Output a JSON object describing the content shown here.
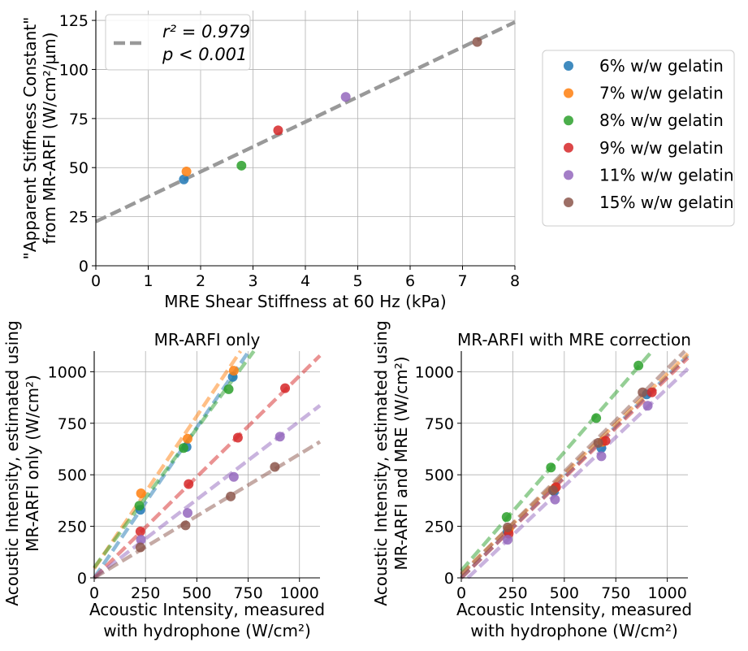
{
  "colors": {
    "6": "#1f77b4",
    "7": "#ff7f0e",
    "8": "#2ca02c",
    "9": "#d62728",
    "11": "#9467bd",
    "15": "#8c564b",
    "fit_gray": "#999999",
    "grid": "#b0b0b0"
  },
  "legend": {
    "items": [
      {
        "key": "6",
        "label": "6% w/w gelatin"
      },
      {
        "key": "7",
        "label": "7% w/w gelatin"
      },
      {
        "key": "8",
        "label": "8% w/w gelatin"
      },
      {
        "key": "9",
        "label": "9% w/w gelatin"
      },
      {
        "key": "11",
        "label": "11% w/w gelatin"
      },
      {
        "key": "15",
        "label": "15% w/w gelatin"
      }
    ]
  },
  "chart_data": [
    {
      "id": "top",
      "type": "scatter",
      "title": "",
      "xlabel": "MRE Shear Stiffness at 60 Hz (kPa)",
      "ylabel_lines": [
        "\"Apparent Stiffness Constant\"",
        "from MR-ARFI (W/cm²/µm)"
      ],
      "xlim": [
        0,
        8
      ],
      "ylim": [
        0,
        130
      ],
      "xticks": [
        0,
        1,
        2,
        3,
        4,
        5,
        6,
        7,
        8
      ],
      "yticks": [
        0,
        25,
        50,
        75,
        100,
        125
      ],
      "grid": true,
      "points": [
        {
          "key": "6",
          "x": 1.68,
          "y": 44
        },
        {
          "key": "7",
          "x": 1.73,
          "y": 48
        },
        {
          "key": "8",
          "x": 2.78,
          "y": 51
        },
        {
          "key": "9",
          "x": 3.48,
          "y": 69
        },
        {
          "key": "11",
          "x": 4.77,
          "y": 86
        },
        {
          "key": "15",
          "x": 7.28,
          "y": 114
        }
      ],
      "fit": {
        "intercept": 22.5,
        "slope": 12.7,
        "color_key": "fit_gray"
      },
      "annotation": {
        "r2": "r² = 0.979",
        "p": "p < 0.001"
      }
    },
    {
      "id": "bottom-left",
      "type": "scatter",
      "title": "MR-ARFI only",
      "xlabel_lines": [
        "Acoustic Intensity, measured",
        "with hydrophone (W/cm²)"
      ],
      "ylabel_lines": [
        "Acoustic Intensity, estimated using",
        "MR-ARFI only (W/cm²)"
      ],
      "xlim": [
        0,
        1100
      ],
      "ylim": [
        0,
        1100
      ],
      "xticks": [
        0,
        250,
        500,
        750,
        1000
      ],
      "yticks": [
        0,
        250,
        500,
        750,
        1000
      ],
      "grid": true,
      "series": [
        {
          "key": "6",
          "points": [
            [
              225,
              330
            ],
            [
              450,
              635
            ],
            [
              675,
              975
            ]
          ],
          "fit": {
            "intercept": 0,
            "slope": 1.46
          }
        },
        {
          "key": "7",
          "points": [
            [
              228,
              410
            ],
            [
              455,
              675
            ],
            [
              680,
              1005
            ]
          ],
          "fit": {
            "intercept": 45,
            "slope": 1.48
          }
        },
        {
          "key": "8",
          "points": [
            [
              220,
              350
            ],
            [
              435,
              630
            ],
            [
              655,
              915
            ]
          ],
          "fit": {
            "intercept": 50,
            "slope": 1.35
          }
        },
        {
          "key": "9",
          "points": [
            [
              225,
              225
            ],
            [
              460,
              455
            ],
            [
              700,
              680
            ],
            [
              930,
              920
            ]
          ],
          "fit": {
            "intercept": 0,
            "slope": 0.98
          }
        },
        {
          "key": "11",
          "points": [
            [
              228,
              185
            ],
            [
              455,
              315
            ],
            [
              680,
              490
            ],
            [
              905,
              685
            ]
          ],
          "fit": {
            "intercept": 0,
            "slope": 0.76
          }
        },
        {
          "key": "15",
          "points": [
            [
              225,
              148
            ],
            [
              445,
              255
            ],
            [
              665,
              395
            ],
            [
              880,
              538
            ]
          ],
          "fit": {
            "intercept": 0,
            "slope": 0.6
          }
        }
      ]
    },
    {
      "id": "bottom-right",
      "type": "scatter",
      "title": "MR-ARFI with MRE correction",
      "xlabel_lines": [
        "Acoustic Intensity, measured",
        "with hydrophone (W/cm²)"
      ],
      "ylabel_lines": [
        "Acoustic Intensity, estimated using",
        "MR-ARFI and MRE (W/cm²)"
      ],
      "xlim": [
        0,
        1100
      ],
      "ylim": [
        0,
        1100
      ],
      "xticks": [
        0,
        250,
        500,
        750,
        1000
      ],
      "yticks": [
        0,
        250,
        500,
        750,
        1000
      ],
      "grid": true,
      "series": [
        {
          "key": "6",
          "points": [
            [
              225,
              225
            ],
            [
              450,
              420
            ],
            [
              680,
              630
            ],
            [
              900,
              890
            ]
          ],
          "fit": {
            "intercept": 0,
            "slope": 0.98
          }
        },
        {
          "key": "7",
          "points": [
            [
              230,
              235
            ],
            [
              455,
              435
            ],
            [
              685,
              660
            ]
          ],
          "fit": {
            "intercept": 20,
            "slope": 0.97
          }
        },
        {
          "key": "8",
          "points": [
            [
              220,
              295
            ],
            [
              435,
              535
            ],
            [
              655,
              775
            ],
            [
              860,
              1030
            ]
          ],
          "fit": {
            "intercept": 35,
            "slope": 1.15
          }
        },
        {
          "key": "9",
          "points": [
            [
              230,
              215
            ],
            [
              460,
              440
            ],
            [
              700,
              665
            ],
            [
              925,
              900
            ]
          ],
          "fit": {
            "intercept": 0,
            "slope": 0.97
          }
        },
        {
          "key": "11",
          "points": [
            [
              225,
              185
            ],
            [
              455,
              380
            ],
            [
              680,
              590
            ],
            [
              905,
              835
            ]
          ],
          "fit": {
            "intercept": -30,
            "slope": 0.95
          }
        },
        {
          "key": "15",
          "points": [
            [
              225,
              245
            ],
            [
              445,
              425
            ],
            [
              665,
              655
            ],
            [
              880,
              900
            ]
          ],
          "fit": {
            "intercept": 15,
            "slope": 1.0
          }
        }
      ]
    }
  ]
}
